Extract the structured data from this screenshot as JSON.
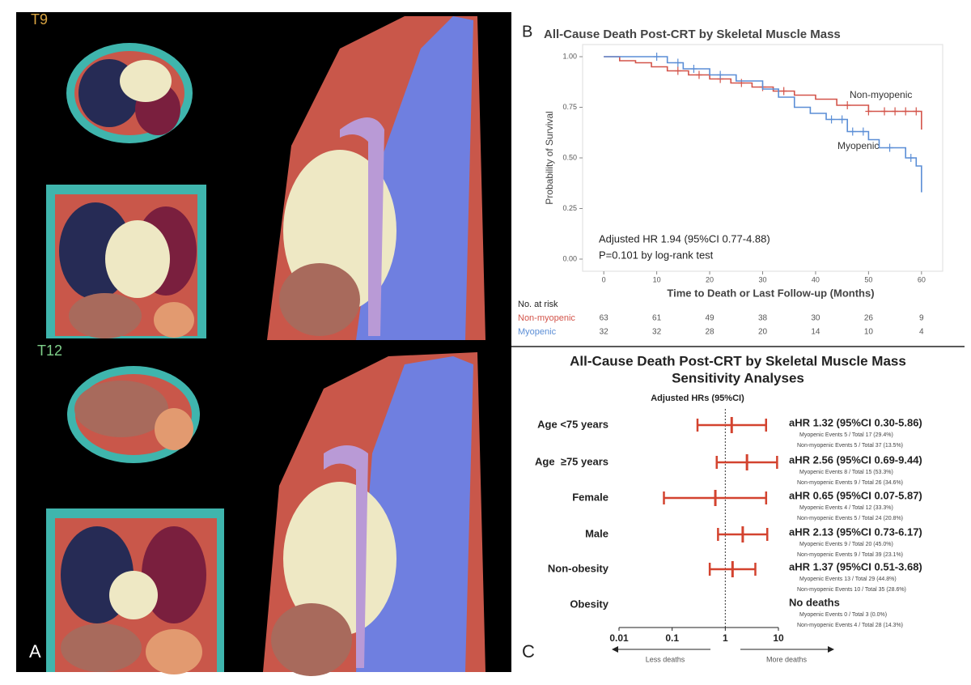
{
  "panel_a": {
    "label": "A",
    "slices": [
      "T9",
      "T12"
    ]
  },
  "chart_data": [
    {
      "type": "step",
      "panel_label": "B",
      "title": "All-Cause Death Post-CRT by Skeletal Muscle Mass",
      "x_label": "Time to Death or Last Follow-up (Months)",
      "y_label": "Probability of Survival",
      "xlim": [
        -4,
        64
      ],
      "ylim": [
        -0.06,
        1.06
      ],
      "xticks": [
        0,
        10,
        20,
        30,
        40,
        50,
        60
      ],
      "yticks": [
        {
          "value": 0,
          "label": "0.00"
        },
        {
          "value": 0.25,
          "label": "0.25"
        },
        {
          "value": 0.5,
          "label": "0.50"
        },
        {
          "value": 0.75,
          "label": "0.75"
        },
        {
          "value": 1,
          "label": "1.00"
        }
      ],
      "series": [
        {
          "name": "Non-myopenic",
          "color": "#d3544a",
          "x": [
            0,
            3,
            3,
            6,
            6,
            9,
            9,
            12,
            12,
            16,
            16,
            20,
            20,
            24,
            24,
            28,
            28,
            32,
            32,
            36,
            36,
            40,
            40,
            44,
            44,
            50,
            50,
            60,
            60
          ],
          "values": [
            1,
            1,
            0.98,
            0.98,
            0.97,
            0.97,
            0.95,
            0.95,
            0.93,
            0.93,
            0.91,
            0.91,
            0.89,
            0.89,
            0.87,
            0.87,
            0.85,
            0.85,
            0.83,
            0.83,
            0.81,
            0.81,
            0.79,
            0.79,
            0.76,
            0.76,
            0.73,
            0.73,
            0.64
          ],
          "censored": [
            14,
            18,
            22,
            26,
            30,
            34,
            46,
            50,
            53,
            55,
            57,
            59
          ]
        },
        {
          "name": "Myopenic",
          "color": "#5b8ed6",
          "x": [
            0,
            12,
            12,
            15,
            15,
            20,
            20,
            25,
            25,
            30,
            30,
            33,
            33,
            36,
            36,
            39,
            39,
            42,
            42,
            46,
            46,
            50,
            50,
            52,
            52,
            57,
            57,
            59,
            59,
            60,
            60
          ],
          "values": [
            1,
            1,
            0.97,
            0.97,
            0.94,
            0.94,
            0.91,
            0.91,
            0.88,
            0.88,
            0.84,
            0.84,
            0.8,
            0.8,
            0.75,
            0.75,
            0.72,
            0.72,
            0.69,
            0.69,
            0.63,
            0.63,
            0.59,
            0.59,
            0.55,
            0.55,
            0.5,
            0.5,
            0.46,
            0.46,
            0.33
          ],
          "censored": [
            10,
            14,
            17,
            22,
            43,
            45,
            47,
            49,
            54,
            58
          ]
        }
      ],
      "annotations": [
        "Adjusted HR 1.94 (95%CI 0.77-4.88)",
        "P=0.101 by log-rank test"
      ],
      "risk_table": {
        "title": "No. at risk",
        "rows": [
          {
            "name": "Non-myopenic",
            "values": [
              63,
              61,
              49,
              38,
              30,
              26,
              9
            ]
          },
          {
            "name": "Myopenic",
            "values": [
              32,
              32,
              28,
              20,
              14,
              10,
              4
            ]
          }
        ]
      }
    },
    {
      "type": "forest",
      "panel_label": "C",
      "title": "All-Cause Death Post-CRT by Skeletal Muscle Mass",
      "subtitle": "Sensitivity Analyses",
      "header": "Adjusted HRs (95%CI)",
      "log_scale": true,
      "color": "#d3432f",
      "xlim": [
        0.01,
        10
      ],
      "xticks": [
        0.01,
        0.1,
        1,
        10
      ],
      "reference": 1,
      "categories": [
        "Age <75 years",
        "Age  ≥75 years",
        "Female",
        "Male",
        "Non-obesity",
        "Obesity"
      ],
      "values": [
        1.32,
        2.56,
        0.65,
        2.13,
        1.37,
        null
      ],
      "lower": [
        0.3,
        0.69,
        0.07,
        0.73,
        0.51,
        null
      ],
      "upper": [
        5.86,
        9.44,
        5.87,
        6.17,
        3.68,
        null
      ],
      "value_labels": [
        "aHR 1.32 (95%CI 0.30-5.86)",
        "aHR 2.56 (95%CI 0.69-9.44)",
        "aHR 0.65 (95%CI 0.07-5.87)",
        "aHR 2.13 (95%CI 0.73-6.17)",
        "aHR 1.37 (95%CI 0.51-3.68)",
        "No deaths"
      ],
      "notes": [
        [
          "Myopenic Events 5 / Total 17 (29.4%)",
          "Non-myopenic Events 5 / Total 37 (13.5%)"
        ],
        [
          "Myopenic Events 8 / Total 15 (53.3%)",
          "Non-myopenic Events 9 / Total 26 (34.6%)"
        ],
        [
          "Myopenic Events 4 / Total 12 (33.3%)",
          "Non-myopenic Events 5 / Total 24 (20.8%)"
        ],
        [
          "Myopenic Events 9 / Total 20 (45.0%)",
          "Non-myopenic Events 9 / Total 39 (23.1%)"
        ],
        [
          "Myopenic Events 13 / Total 29 (44.8%)",
          "Non-myopenic Events 10 / Total 35 (28.6%)"
        ],
        [
          "Myopenic Events 0 / Total 3 (0.0%)",
          "Non-myopenic Events 4 / Total 28 (14.3%)"
        ]
      ],
      "direction_labels": [
        "Less deaths",
        "More deaths"
      ]
    }
  ]
}
